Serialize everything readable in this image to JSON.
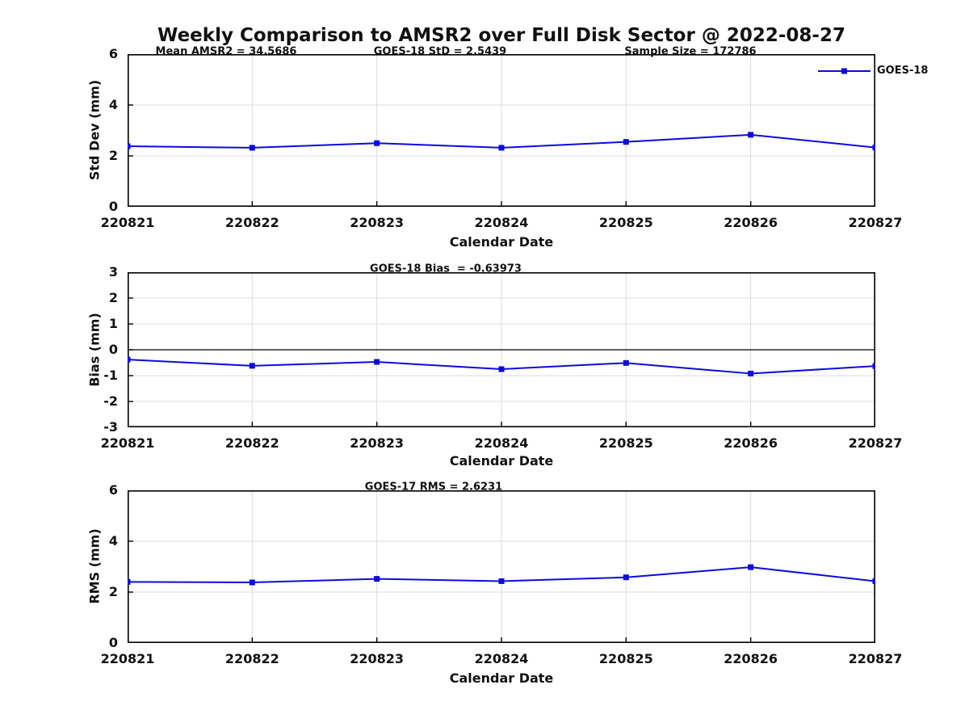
{
  "title": "Weekly Comparison to AMSR2 over Full Disk Sector @ 2022-08-27",
  "legend": {
    "label": "GOES-18"
  },
  "colors": {
    "series": "#0b0be0",
    "grid": "#dcdcdc",
    "axis": "#000000",
    "text": "#111111",
    "background": "#ffffff"
  },
  "chart_data": [
    {
      "type": "line",
      "ylabel": "Std Dev (mm)",
      "xlabel": "Calendar Date",
      "x": [
        "220821",
        "220822",
        "220823",
        "220824",
        "220825",
        "220826",
        "220827"
      ],
      "series": [
        {
          "name": "GOES-18",
          "values": [
            2.38,
            2.32,
            2.5,
            2.32,
            2.55,
            2.83,
            2.33
          ]
        }
      ],
      "ylim": [
        0,
        6
      ],
      "yticks": [
        0,
        2,
        4,
        6
      ],
      "grid": true,
      "legend_position": "northeast",
      "marker": "square",
      "annotations": [
        "Mean AMSR2 = 34.5686",
        "GOES-18 StD = 2.5439",
        "Sample Size = 172786"
      ]
    },
    {
      "type": "line",
      "ylabel": "Bias (mm)",
      "xlabel": "Calendar Date",
      "x": [
        "220821",
        "220822",
        "220823",
        "220824",
        "220825",
        "220826",
        "220827"
      ],
      "series": [
        {
          "name": "GOES-18",
          "values": [
            -0.38,
            -0.62,
            -0.47,
            -0.75,
            -0.51,
            -0.92,
            -0.63
          ]
        }
      ],
      "ylim": [
        -3,
        3
      ],
      "yticks": [
        -3,
        -2,
        -1,
        0,
        1,
        2,
        3
      ],
      "grid": true,
      "zero_line": true,
      "marker": "square",
      "annotations": [
        "GOES-18 Bias  = -0.63973"
      ]
    },
    {
      "type": "line",
      "ylabel": "RMS (mm)",
      "xlabel": "Calendar Date",
      "x": [
        "220821",
        "220822",
        "220823",
        "220824",
        "220825",
        "220826",
        "220827"
      ],
      "series": [
        {
          "name": "GOES-18",
          "values": [
            2.4,
            2.38,
            2.52,
            2.43,
            2.58,
            2.98,
            2.43
          ]
        }
      ],
      "ylim": [
        0,
        6
      ],
      "yticks": [
        0,
        2,
        4,
        6
      ],
      "grid": true,
      "marker": "square",
      "annotations": [
        "GOES-17 RMS = 2.6231"
      ]
    }
  ]
}
